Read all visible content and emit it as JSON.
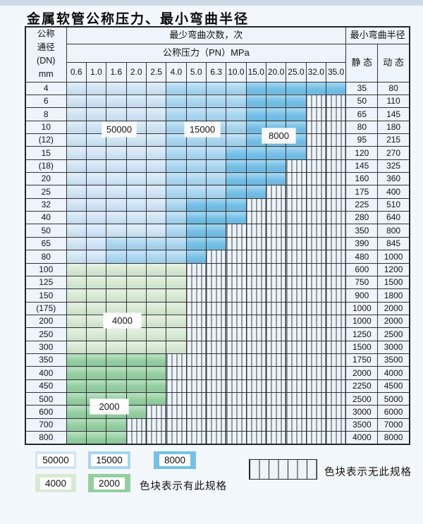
{
  "page": {
    "title": "金属软管公称压力、最小弯曲半径"
  },
  "table": {
    "corner_lines": [
      "公称",
      "通径",
      "(DN)",
      "mm"
    ],
    "bend_cycles_header": "最少弯曲次数，次",
    "pressure_header": "公称压力（PN）MPa",
    "radius_header": "最小弯曲半径",
    "static_header": "静 态",
    "dynamic_header": "动 态",
    "pressure_columns": [
      "0.6",
      "1.0",
      "1.6",
      "2.0",
      "2.5",
      "4.0",
      "5.0",
      "6.3",
      "10.0",
      "15.0",
      "20.0",
      "25.0",
      "32.0",
      "35.0"
    ],
    "rows": [
      {
        "dn": "4",
        "static": "35",
        "dynamic": "80",
        "bands": [
          [
            "b50",
            5
          ],
          [
            "b15",
            4
          ],
          [
            "b8",
            5
          ]
        ]
      },
      {
        "dn": "6",
        "static": "50",
        "dynamic": "110",
        "bands": [
          [
            "b50",
            5
          ],
          [
            "b15",
            4
          ],
          [
            "b8",
            3
          ]
        ]
      },
      {
        "dn": "8",
        "static": "65",
        "dynamic": "145",
        "bands": [
          [
            "b50",
            5
          ],
          [
            "b15",
            4
          ],
          [
            "b8",
            3
          ]
        ]
      },
      {
        "dn": "10",
        "static": "80",
        "dynamic": "180",
        "bands": [
          [
            "b50",
            5
          ],
          [
            "b15",
            4
          ],
          [
            "b8",
            3
          ]
        ]
      },
      {
        "dn": "(12)",
        "static": "95",
        "dynamic": "215",
        "bands": [
          [
            "b50",
            5
          ],
          [
            "b15",
            4
          ],
          [
            "b8",
            3
          ]
        ]
      },
      {
        "dn": "15",
        "static": "120",
        "dynamic": "270",
        "bands": [
          [
            "b50",
            5
          ],
          [
            "b15",
            3
          ],
          [
            "b8",
            4
          ]
        ]
      },
      {
        "dn": "(18)",
        "static": "145",
        "dynamic": "325",
        "bands": [
          [
            "b50",
            5
          ],
          [
            "b15",
            3
          ],
          [
            "b8",
            3
          ]
        ]
      },
      {
        "dn": "20",
        "static": "160",
        "dynamic": "360",
        "bands": [
          [
            "b50",
            5
          ],
          [
            "b15",
            3
          ],
          [
            "b8",
            3
          ]
        ]
      },
      {
        "dn": "25",
        "static": "175",
        "dynamic": "400",
        "bands": [
          [
            "b50",
            5
          ],
          [
            "b15",
            3
          ],
          [
            "b8",
            2
          ]
        ]
      },
      {
        "dn": "32",
        "static": "225",
        "dynamic": "510",
        "bands": [
          [
            "b50",
            5
          ],
          [
            "b15",
            1
          ],
          [
            "b8",
            3
          ]
        ]
      },
      {
        "dn": "40",
        "static": "280",
        "dynamic": "640",
        "bands": [
          [
            "b50",
            5
          ],
          [
            "b15",
            1
          ],
          [
            "b8",
            3
          ]
        ]
      },
      {
        "dn": "50",
        "static": "350",
        "dynamic": "800",
        "bands": [
          [
            "b50",
            5
          ],
          [
            "b15",
            1
          ],
          [
            "b8",
            2
          ]
        ]
      },
      {
        "dn": "65",
        "static": "390",
        "dynamic": "845",
        "bands": [
          [
            "b50",
            2
          ],
          [
            "b15",
            4
          ],
          [
            "b8",
            2
          ]
        ]
      },
      {
        "dn": "80",
        "static": "480",
        "dynamic": "1000",
        "bands": [
          [
            "b50",
            2
          ],
          [
            "b15",
            4
          ],
          [
            "b8",
            1
          ]
        ]
      },
      {
        "dn": "100",
        "static": "600",
        "dynamic": "1200",
        "bands": [
          [
            "g4",
            6
          ]
        ]
      },
      {
        "dn": "125",
        "static": "750",
        "dynamic": "1500",
        "bands": [
          [
            "g4",
            6
          ]
        ]
      },
      {
        "dn": "150",
        "static": "900",
        "dynamic": "1800",
        "bands": [
          [
            "g4",
            6
          ]
        ]
      },
      {
        "dn": "(175)",
        "static": "1000",
        "dynamic": "2000",
        "bands": [
          [
            "g4",
            6
          ]
        ]
      },
      {
        "dn": "200",
        "static": "1000",
        "dynamic": "2000",
        "bands": [
          [
            "g4",
            6
          ]
        ]
      },
      {
        "dn": "250",
        "static": "1250",
        "dynamic": "2500",
        "bands": [
          [
            "g4",
            6
          ]
        ]
      },
      {
        "dn": "300",
        "static": "1500",
        "dynamic": "3000",
        "bands": [
          [
            "g4",
            6
          ]
        ]
      },
      {
        "dn": "350",
        "static": "1750",
        "dynamic": "3500",
        "bands": [
          [
            "g2",
            5
          ]
        ]
      },
      {
        "dn": "400",
        "static": "2000",
        "dynamic": "4000",
        "bands": [
          [
            "g2",
            5
          ]
        ]
      },
      {
        "dn": "450",
        "static": "2250",
        "dynamic": "4500",
        "bands": [
          [
            "g2",
            5
          ]
        ]
      },
      {
        "dn": "500",
        "static": "2500",
        "dynamic": "5000",
        "bands": [
          [
            "g2",
            5
          ]
        ]
      },
      {
        "dn": "600",
        "static": "3000",
        "dynamic": "6000",
        "bands": [
          [
            "g2",
            4
          ]
        ]
      },
      {
        "dn": "700",
        "static": "3500",
        "dynamic": "7000",
        "bands": [
          [
            "g2",
            3
          ]
        ]
      },
      {
        "dn": "800",
        "static": "4000",
        "dynamic": "8000",
        "bands": [
          [
            "g2",
            3
          ]
        ]
      }
    ]
  },
  "overlays": [
    {
      "text": "50000"
    },
    {
      "text": "15000"
    },
    {
      "text": "8000"
    },
    {
      "text": "4000"
    },
    {
      "text": "2000"
    }
  ],
  "legend": {
    "items": [
      {
        "label": "50000",
        "key": "b50"
      },
      {
        "label": "15000",
        "key": "b15"
      },
      {
        "label": "8000",
        "key": "b8"
      },
      {
        "label": "4000",
        "key": "g4"
      },
      {
        "label": "2000",
        "key": "g2"
      }
    ],
    "has_spec_text": "色块表示有此规格",
    "no_spec_text": "色块表示无此规格"
  },
  "colors": {
    "b50": "#cfe5f5",
    "b15": "#a9d6f0",
    "b8": "#74c0e8",
    "g4": "#d7ead2",
    "g2": "#94cfa0",
    "hatch_bg": "#edf4fa",
    "hatch_line": "#394046",
    "grid": "#2e3338",
    "cell_bg": "#eef4fb",
    "page_bg": "#f3f8fc",
    "top_strip": "#ccdbe7"
  }
}
